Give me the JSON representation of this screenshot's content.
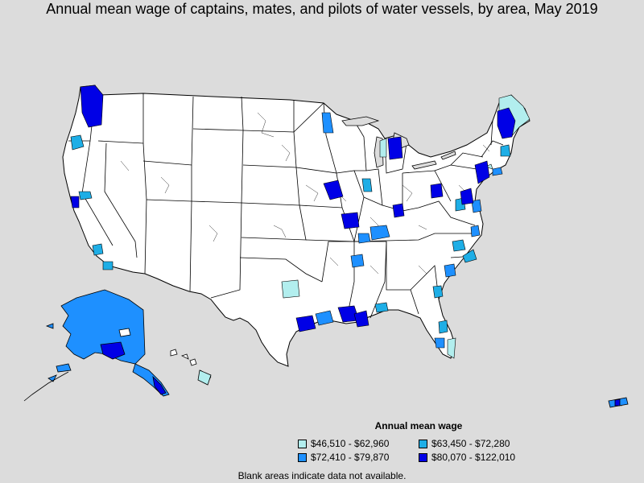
{
  "title": "Annual mean wage of captains, mates, and pilots of water vessels, by area, May 2019",
  "legend": {
    "title": "Annual mean wage",
    "items": [
      {
        "label": "$46,510 - $62,960",
        "color": "#b2eeee"
      },
      {
        "label": "$63,450 - $72,280",
        "color": "#1eaee6"
      },
      {
        "label": "$72,410 - $79,870",
        "color": "#1e90ff"
      },
      {
        "label": "$80,070 - $122,010",
        "color": "#0000e6"
      }
    ]
  },
  "note": "Blank areas indicate data not available.",
  "colors": {
    "background": "#dcdcdc",
    "no_data": "#ffffff",
    "border": "#000000"
  }
}
